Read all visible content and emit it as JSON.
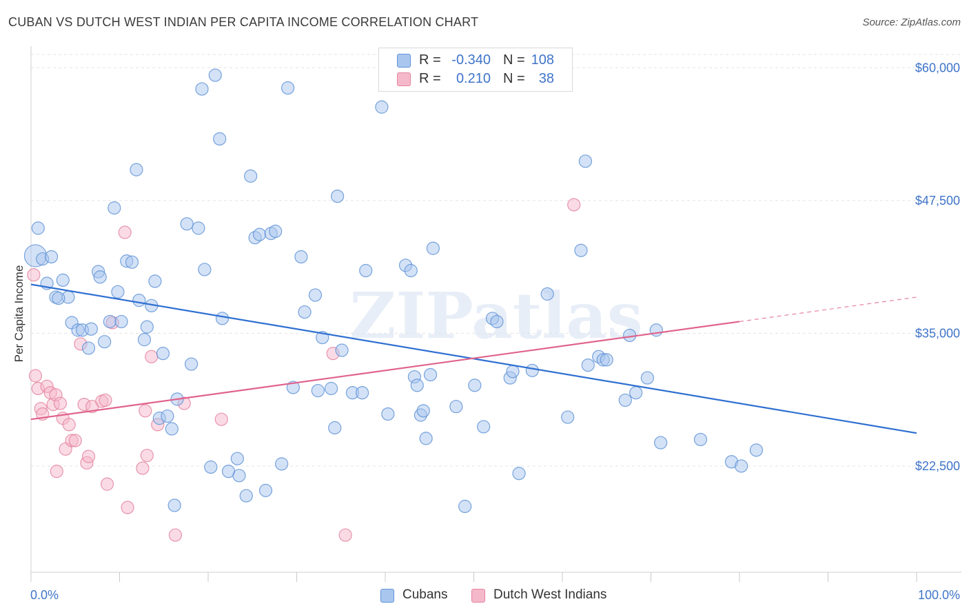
{
  "title": "CUBAN VS DUTCH WEST INDIAN PER CAPITA INCOME CORRELATION CHART",
  "source": "Source: ZipAtlas.com",
  "watermark": "ZIPatlas",
  "colors": {
    "blue_fill": "#a9c6ef",
    "blue_stroke": "#5f93d6",
    "blue_line": "#2e6fd1",
    "pink_fill": "#f5b8cb",
    "pink_stroke": "#e4849f",
    "pink_line": "#e0628b",
    "axis_text": "#3f74c9",
    "grid": "#e3e3e3"
  },
  "legend": {
    "rows": [
      {
        "r_label": "R =",
        "r_value": "-0.340",
        "n_label": "N =",
        "n_value": "108"
      },
      {
        "r_label": "R =",
        "r_value": "0.210",
        "n_label": "N =",
        "n_value": "38"
      }
    ]
  },
  "bottom_legend": [
    "Cubans",
    "Dutch West Indians"
  ],
  "chart_data": {
    "type": "scatter",
    "title": "CUBAN VS DUTCH WEST INDIAN PER CAPITA INCOME CORRELATION CHART",
    "xlabel": "",
    "ylabel": "Per Capita Income",
    "xlim": [
      0,
      100
    ],
    "ylim": [
      12500,
      61250
    ],
    "x_tick_labels": [
      "0.0%",
      "100.0%"
    ],
    "y_ticks": [
      22500,
      35000,
      47500,
      60000
    ],
    "y_tick_labels": [
      "$22,500",
      "$35,000",
      "$47,500",
      "$60,000"
    ],
    "grid": true,
    "legend_position": "top-center",
    "series": [
      {
        "name": "Cubans",
        "trend": {
          "x": [
            0,
            100
          ],
          "y": [
            39600,
            25600
          ]
        },
        "points": [
          [
            0.5,
            42300
          ],
          [
            0.8,
            44900
          ],
          [
            1.3,
            42000
          ],
          [
            2.3,
            42200
          ],
          [
            1.8,
            39700
          ],
          [
            2.8,
            38400
          ],
          [
            3.6,
            40000
          ],
          [
            4.2,
            38400
          ],
          [
            3.1,
            38300
          ],
          [
            4.6,
            36000
          ],
          [
            5.3,
            35300
          ],
          [
            5.8,
            35300
          ],
          [
            6.5,
            33600
          ],
          [
            6.8,
            35400
          ],
          [
            7.6,
            40800
          ],
          [
            7.8,
            40300
          ],
          [
            8.3,
            34200
          ],
          [
            8.9,
            36100
          ],
          [
            9.4,
            46800
          ],
          [
            9.8,
            38900
          ],
          [
            10.2,
            36100
          ],
          [
            10.8,
            41800
          ],
          [
            11.4,
            41700
          ],
          [
            11.9,
            50400
          ],
          [
            12.2,
            38100
          ],
          [
            12.8,
            34400
          ],
          [
            13.1,
            35600
          ],
          [
            13.6,
            37600
          ],
          [
            14.0,
            39900
          ],
          [
            14.5,
            27000
          ],
          [
            14.9,
            33100
          ],
          [
            15.4,
            27200
          ],
          [
            15.9,
            26000
          ],
          [
            16.5,
            28800
          ],
          [
            16.2,
            18800
          ],
          [
            17.6,
            45300
          ],
          [
            18.1,
            32100
          ],
          [
            18.9,
            44900
          ],
          [
            19.6,
            41000
          ],
          [
            20.3,
            22400
          ],
          [
            20.8,
            59300
          ],
          [
            19.3,
            58000
          ],
          [
            21.3,
            53300
          ],
          [
            21.6,
            36400
          ],
          [
            22.3,
            22000
          ],
          [
            23.3,
            23200
          ],
          [
            23.5,
            21600
          ],
          [
            24.3,
            19700
          ],
          [
            24.8,
            49800
          ],
          [
            25.3,
            44000
          ],
          [
            25.8,
            44300
          ],
          [
            26.5,
            20200
          ],
          [
            27.1,
            44400
          ],
          [
            27.6,
            44600
          ],
          [
            28.3,
            22700
          ],
          [
            29.0,
            58100
          ],
          [
            29.6,
            29900
          ],
          [
            30.5,
            42200
          ],
          [
            30.9,
            37000
          ],
          [
            32.1,
            38600
          ],
          [
            32.4,
            29600
          ],
          [
            32.9,
            34600
          ],
          [
            33.9,
            29800
          ],
          [
            34.3,
            26100
          ],
          [
            34.6,
            47900
          ],
          [
            35.1,
            33400
          ],
          [
            36.3,
            29400
          ],
          [
            37.4,
            29400
          ],
          [
            37.8,
            40900
          ],
          [
            39.6,
            56300
          ],
          [
            40.3,
            27400
          ],
          [
            42.3,
            41400
          ],
          [
            42.9,
            40900
          ],
          [
            43.3,
            30900
          ],
          [
            43.6,
            30100
          ],
          [
            44.0,
            27300
          ],
          [
            44.3,
            27700
          ],
          [
            44.6,
            25100
          ],
          [
            45.1,
            31100
          ],
          [
            45.4,
            43000
          ],
          [
            48.0,
            28100
          ],
          [
            49.0,
            18700
          ],
          [
            50.1,
            30100
          ],
          [
            51.1,
            26200
          ],
          [
            52.1,
            36400
          ],
          [
            52.6,
            36100
          ],
          [
            54.1,
            30800
          ],
          [
            54.4,
            31400
          ],
          [
            55.1,
            21800
          ],
          [
            56.6,
            31500
          ],
          [
            58.3,
            38700
          ],
          [
            60.6,
            27100
          ],
          [
            62.1,
            42800
          ],
          [
            62.6,
            51200
          ],
          [
            62.9,
            32000
          ],
          [
            64.1,
            32800
          ],
          [
            64.6,
            32500
          ],
          [
            65.0,
            32500
          ],
          [
            67.1,
            28700
          ],
          [
            67.6,
            34800
          ],
          [
            68.3,
            29400
          ],
          [
            69.6,
            30800
          ],
          [
            70.6,
            35300
          ],
          [
            71.1,
            24700
          ],
          [
            75.6,
            25000
          ],
          [
            79.1,
            22900
          ],
          [
            80.2,
            22500
          ],
          [
            81.9,
            24000
          ]
        ]
      },
      {
        "name": "Dutch West Indians",
        "trend": {
          "x": [
            0,
            80
          ],
          "y": [
            26900,
            36100
          ]
        },
        "trend_extension": {
          "x": [
            80,
            100
          ],
          "y": [
            36100,
            38400
          ]
        },
        "points": [
          [
            0.3,
            40500
          ],
          [
            0.5,
            31000
          ],
          [
            0.8,
            29800
          ],
          [
            1.1,
            27900
          ],
          [
            1.3,
            27400
          ],
          [
            1.8,
            30000
          ],
          [
            2.2,
            29400
          ],
          [
            2.5,
            28300
          ],
          [
            2.8,
            29200
          ],
          [
            2.9,
            22000
          ],
          [
            3.3,
            28400
          ],
          [
            3.6,
            27000
          ],
          [
            3.9,
            24100
          ],
          [
            4.3,
            26400
          ],
          [
            4.6,
            24900
          ],
          [
            5.0,
            24900
          ],
          [
            5.6,
            34000
          ],
          [
            6.0,
            28300
          ],
          [
            6.3,
            22800
          ],
          [
            6.5,
            23400
          ],
          [
            6.9,
            28100
          ],
          [
            8.0,
            28600
          ],
          [
            8.4,
            28700
          ],
          [
            8.6,
            20800
          ],
          [
            9.2,
            36000
          ],
          [
            10.6,
            44500
          ],
          [
            10.9,
            18600
          ],
          [
            12.6,
            22300
          ],
          [
            12.9,
            27700
          ],
          [
            13.1,
            23500
          ],
          [
            13.6,
            32800
          ],
          [
            14.3,
            26400
          ],
          [
            16.3,
            16000
          ],
          [
            17.3,
            28400
          ],
          [
            21.5,
            26900
          ],
          [
            34.1,
            33100
          ],
          [
            35.5,
            16000
          ],
          [
            61.3,
            47100
          ]
        ]
      }
    ]
  }
}
